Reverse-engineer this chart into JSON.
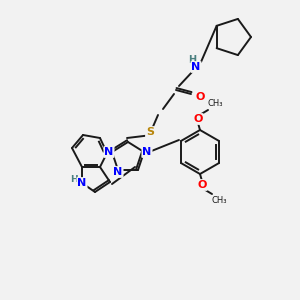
{
  "bg_color": "#f2f2f2",
  "atom_colors": {
    "N": "#0000ff",
    "O": "#ff0000",
    "S": "#b8860b",
    "H": "#4a7f7f",
    "C": "#1a1a1a"
  },
  "bond_color": "#1a1a1a",
  "font_size": 8.0,
  "fig_width": 3.0,
  "fig_height": 3.0,
  "dpi": 100
}
